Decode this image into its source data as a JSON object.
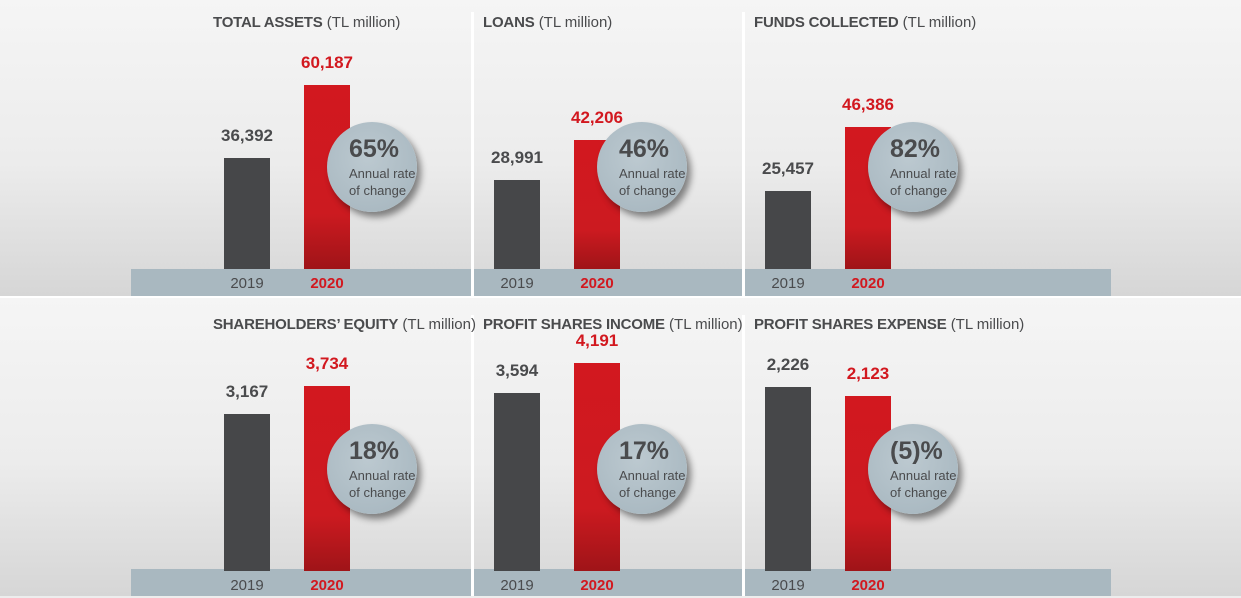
{
  "unit": "(TL million)",
  "chart_data": [
    {
      "type": "bar",
      "title": "TOTAL ASSETS",
      "unit": "(TL million)",
      "categories": [
        "2019",
        "2020"
      ],
      "values": [
        36392,
        60187
      ],
      "value_labels": [
        "36,392",
        "60,187"
      ],
      "change": "65%",
      "change_label_1": "Annual rate",
      "change_label_2": "of change"
    },
    {
      "type": "bar",
      "title": "LOANS",
      "unit": "(TL million)",
      "categories": [
        "2019",
        "2020"
      ],
      "values": [
        28991,
        42206
      ],
      "value_labels": [
        "28,991",
        "42,206"
      ],
      "change": "46%",
      "change_label_1": "Annual rate",
      "change_label_2": "of change"
    },
    {
      "type": "bar",
      "title": "FUNDS COLLECTED",
      "unit": "(TL million)",
      "categories": [
        "2019",
        "2020"
      ],
      "values": [
        25457,
        46386
      ],
      "value_labels": [
        "25,457",
        "46,386"
      ],
      "change": "82%",
      "change_label_1": "Annual rate",
      "change_label_2": "of change"
    },
    {
      "type": "bar",
      "title": "SHAREHOLDERS’ EQUITY",
      "unit": "(TL million)",
      "categories": [
        "2019",
        "2020"
      ],
      "values": [
        3167,
        3734
      ],
      "value_labels": [
        "3,167",
        "3,734"
      ],
      "change": "18%",
      "change_label_1": "Annual rate",
      "change_label_2": "of change"
    },
    {
      "type": "bar",
      "title": "PROFIT SHARES INCOME",
      "unit": "(TL million)",
      "categories": [
        "2019",
        "2020"
      ],
      "values": [
        3594,
        4191
      ],
      "value_labels": [
        "3,594",
        "4,191"
      ],
      "change": "17%",
      "change_label_1": "Annual rate",
      "change_label_2": "of change"
    },
    {
      "type": "bar",
      "title": "PROFIT SHARES EXPENSE",
      "unit": "(TL million)",
      "categories": [
        "2019",
        "2020"
      ],
      "values": [
        2226,
        2123
      ],
      "value_labels": [
        "2,226",
        "2,123"
      ],
      "change": "(5)%",
      "change_label_1": "Annual rate",
      "change_label_2": "of change"
    }
  ],
  "colors": {
    "bar_2019": "#464749",
    "bar_2020": "#d2181f",
    "bubble": "#a9b8c0",
    "strip": "#a9b8c0"
  }
}
